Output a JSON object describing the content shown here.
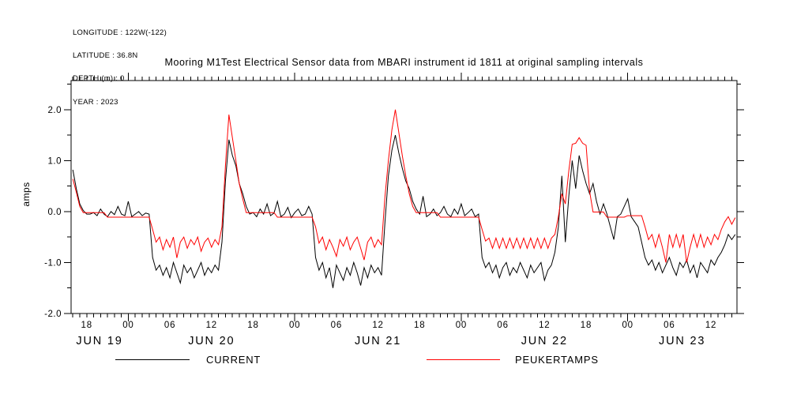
{
  "meta": {
    "longitude": "LONGITUDE : 122W(-122)",
    "latitude": "LATITUDE : 36.8N",
    "depth": "DEPTH (m) : 0",
    "year": "YEAR : 2023"
  },
  "title": "Mooring M1Test Electrical Sensor data from MBARI instrument id 1811 at original sampling intervals",
  "chart_data": {
    "type": "line",
    "title": "Mooring M1Test Electrical Sensor data from MBARI instrument id 1811 at original sampling intervals",
    "ylabel": "amps",
    "ylim": [
      -2.0,
      2.57
    ],
    "grid": "off",
    "y_ticks": [
      {
        "value": -2.0,
        "label": "-2.0"
      },
      {
        "value": -1.0,
        "label": "-1.0"
      },
      {
        "value": 0.0,
        "label": "0.0"
      },
      {
        "value": 1.0,
        "label": "1.0"
      },
      {
        "value": 2.0,
        "label": "2.0"
      }
    ],
    "y_minor_tick_step": 0.5,
    "x_axis": {
      "range_hours": [
        0,
        96
      ],
      "description": "time from 16:00 JUN 19 2023 to 16:00 JUN 23 2023, minor ticks hourly, long ticks at midnight",
      "minor_tick_start_t": 0.25,
      "minor_tick_step": 1,
      "midnight_hours_t": [
        8.25,
        32.25,
        56.25,
        80.25
      ],
      "hour_label_start_t": 2.25,
      "hour_label_step": 6,
      "hour_labels": [
        "18",
        "00",
        "06",
        "12",
        "18",
        "00",
        "06",
        "12",
        "18",
        "00",
        "06",
        "12",
        "18",
        "00",
        "06",
        "12"
      ],
      "date_labels": [
        {
          "label": "JUN 19",
          "t": 4.1
        },
        {
          "label": "JUN 20",
          "t": 20.25
        },
        {
          "label": "JUN 21",
          "t": 44.25
        },
        {
          "label": "JUN 22",
          "t": 68.25
        },
        {
          "label": "JUN 23",
          "t": 88.1
        }
      ]
    },
    "legend": [
      {
        "label": "CURRENT",
        "color": "#000000"
      },
      {
        "label": "PEUKERTAMPS",
        "color": "#ff0000"
      }
    ],
    "series": [
      {
        "name": "CURRENT",
        "color": "#000000",
        "t0": 0.25,
        "dt": 0.5,
        "values": [
          0.82,
          0.45,
          0.15,
          0.02,
          -0.05,
          -0.05,
          -0.02,
          -0.08,
          0.05,
          -0.05,
          -0.1,
          0.0,
          -0.06,
          0.1,
          -0.05,
          -0.08,
          0.2,
          -0.1,
          -0.05,
          0.0,
          -0.08,
          -0.03,
          -0.05,
          -0.9,
          -1.15,
          -1.05,
          -1.25,
          -1.1,
          -1.3,
          -1.0,
          -1.2,
          -1.4,
          -1.05,
          -1.2,
          -1.1,
          -1.3,
          -1.15,
          -1.0,
          -1.25,
          -1.1,
          -1.2,
          -1.05,
          -1.15,
          -0.6,
          0.6,
          1.41,
          1.1,
          0.9,
          0.55,
          0.35,
          0.1,
          -0.05,
          -0.02,
          -0.1,
          0.05,
          -0.05,
          0.15,
          -0.08,
          -0.03,
          0.2,
          -0.1,
          -0.05,
          0.08,
          -0.12,
          -0.02,
          0.05,
          -0.08,
          -0.05,
          0.1,
          -0.05,
          -0.9,
          -1.15,
          -1.0,
          -1.3,
          -1.1,
          -1.5,
          -1.05,
          -1.2,
          -1.35,
          -1.1,
          -1.25,
          -1.0,
          -1.2,
          -1.45,
          -1.1,
          -1.3,
          -1.05,
          -1.2,
          -1.1,
          -1.25,
          -0.2,
          0.7,
          1.2,
          1.5,
          1.15,
          0.85,
          0.6,
          0.45,
          0.2,
          0.05,
          -0.05,
          0.3,
          -0.1,
          -0.05,
          0.05,
          -0.08,
          -0.02,
          0.1,
          -0.05,
          -0.1,
          0.05,
          -0.05,
          0.15,
          -0.08,
          -0.02,
          0.05,
          -0.1,
          -0.05,
          -0.9,
          -1.1,
          -1.0,
          -1.2,
          -1.05,
          -1.3,
          -1.1,
          -1.0,
          -1.25,
          -1.1,
          -1.2,
          -1.0,
          -1.15,
          -1.3,
          -1.05,
          -1.2,
          -1.1,
          -1.0,
          -1.35,
          -1.15,
          -1.05,
          -0.8,
          -0.3,
          0.7,
          -0.6,
          0.3,
          1.0,
          0.45,
          1.1,
          0.8,
          0.55,
          0.35,
          0.55,
          0.2,
          -0.05,
          0.15,
          -0.05,
          -0.3,
          -0.55,
          -0.1,
          -0.05,
          0.1,
          0.25,
          -0.1,
          -0.2,
          -0.3,
          -0.6,
          -0.9,
          -1.05,
          -0.95,
          -1.15,
          -1.0,
          -1.2,
          -1.05,
          -0.9,
          -1.1,
          -1.25,
          -1.0,
          -1.1,
          -0.95,
          -1.2,
          -1.05,
          -1.3,
          -1.0,
          -1.1,
          -1.2,
          -0.95,
          -1.05,
          -0.9,
          -0.8,
          -0.65,
          -0.45,
          -0.55,
          -0.45
        ]
      },
      {
        "name": "PEUKERTAMPS",
        "color": "#ff0000",
        "t0": 0.25,
        "dt": 0.5,
        "values": [
          0.64,
          0.38,
          0.1,
          -0.02,
          -0.02,
          -0.02,
          -0.02,
          -0.02,
          -0.02,
          -0.02,
          -0.11,
          -0.11,
          -0.11,
          -0.11,
          -0.11,
          -0.11,
          -0.11,
          -0.11,
          -0.11,
          -0.11,
          -0.11,
          -0.11,
          -0.11,
          -0.35,
          -0.6,
          -0.5,
          -0.75,
          -0.55,
          -0.7,
          -0.5,
          -0.91,
          -0.6,
          -0.5,
          -0.72,
          -0.55,
          -0.65,
          -0.5,
          -0.78,
          -0.6,
          -0.52,
          -0.7,
          -0.55,
          -0.65,
          -0.3,
          0.9,
          1.9,
          1.45,
          1.0,
          0.55,
          0.25,
          -0.02,
          -0.02,
          -0.02,
          -0.02,
          -0.02,
          -0.02,
          -0.02,
          -0.02,
          -0.02,
          -0.11,
          -0.11,
          -0.11,
          -0.11,
          -0.11,
          -0.11,
          -0.11,
          -0.11,
          -0.11,
          -0.11,
          -0.11,
          -0.3,
          -0.62,
          -0.5,
          -0.75,
          -0.55,
          -0.7,
          -0.88,
          -0.55,
          -0.68,
          -0.5,
          -0.75,
          -0.6,
          -0.5,
          -0.72,
          -0.95,
          -0.6,
          -0.5,
          -0.7,
          -0.55,
          -0.65,
          0.3,
          1.0,
          1.6,
          2.0,
          1.55,
          1.1,
          0.7,
          0.35,
          0.1,
          -0.02,
          -0.02,
          -0.02,
          -0.02,
          -0.02,
          -0.02,
          -0.02,
          -0.11,
          -0.11,
          -0.11,
          -0.11,
          -0.11,
          -0.11,
          -0.11,
          -0.11,
          -0.11,
          -0.11,
          -0.11,
          -0.11,
          -0.35,
          -0.58,
          -0.52,
          -0.72,
          -0.52,
          -0.72,
          -0.52,
          -0.72,
          -0.52,
          -0.72,
          -0.52,
          -0.72,
          -0.52,
          -0.72,
          -0.52,
          -0.72,
          -0.52,
          -0.72,
          -0.52,
          -0.72,
          -0.52,
          -0.45,
          -0.1,
          0.35,
          0.15,
          0.8,
          1.32,
          1.34,
          1.45,
          1.34,
          1.3,
          0.4,
          -0.01,
          -0.01,
          -0.01,
          -0.01,
          -0.11,
          -0.11,
          -0.11,
          -0.11,
          -0.11,
          -0.11,
          -0.08,
          -0.08,
          -0.08,
          -0.08,
          -0.08,
          -0.3,
          -0.55,
          -0.45,
          -0.7,
          -0.45,
          -0.7,
          -1.0,
          -0.45,
          -0.7,
          -0.45,
          -0.7,
          -0.45,
          -1.0,
          -0.7,
          -0.45,
          -0.7,
          -0.45,
          -0.7,
          -0.5,
          -0.65,
          -0.45,
          -0.55,
          -0.35,
          -0.2,
          -0.1,
          -0.25,
          -0.12
        ]
      }
    ]
  }
}
